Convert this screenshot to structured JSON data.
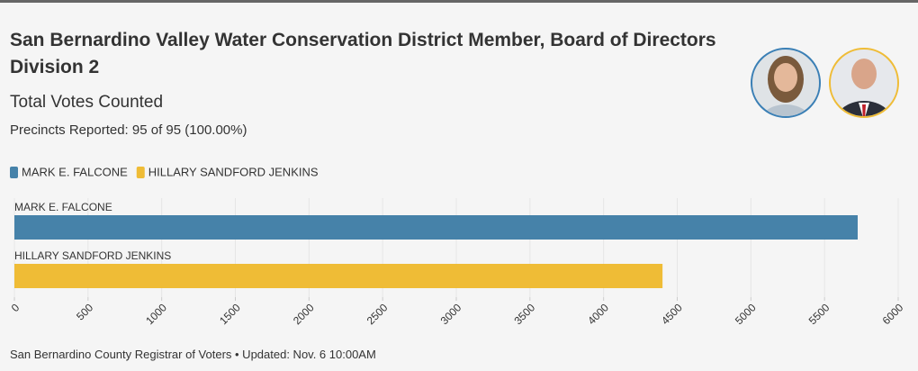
{
  "header": {
    "title": "San Bernardino Valley Water Conservation District Member, Board of Directors Division 2",
    "subtitle": "Total Votes Counted",
    "precincts": "Precincts Reported: 95 of 95 (100.00%)"
  },
  "chart_data": {
    "type": "bar",
    "orientation": "horizontal",
    "categories": [
      "MARK E. FALCONE",
      "HILLARY SANDFORD JENKINS"
    ],
    "values": [
      5725,
      4400
    ],
    "colors": [
      "#4682a9",
      "#efbc36"
    ],
    "xlim": [
      0,
      6000
    ],
    "xticks": [
      0,
      500,
      1000,
      1500,
      2000,
      2500,
      3000,
      3500,
      4000,
      4500,
      5000,
      5500,
      6000
    ],
    "grid": true
  },
  "footer": "San Bernardino County Registrar of Voters • Updated: Nov. 6 10:00AM"
}
